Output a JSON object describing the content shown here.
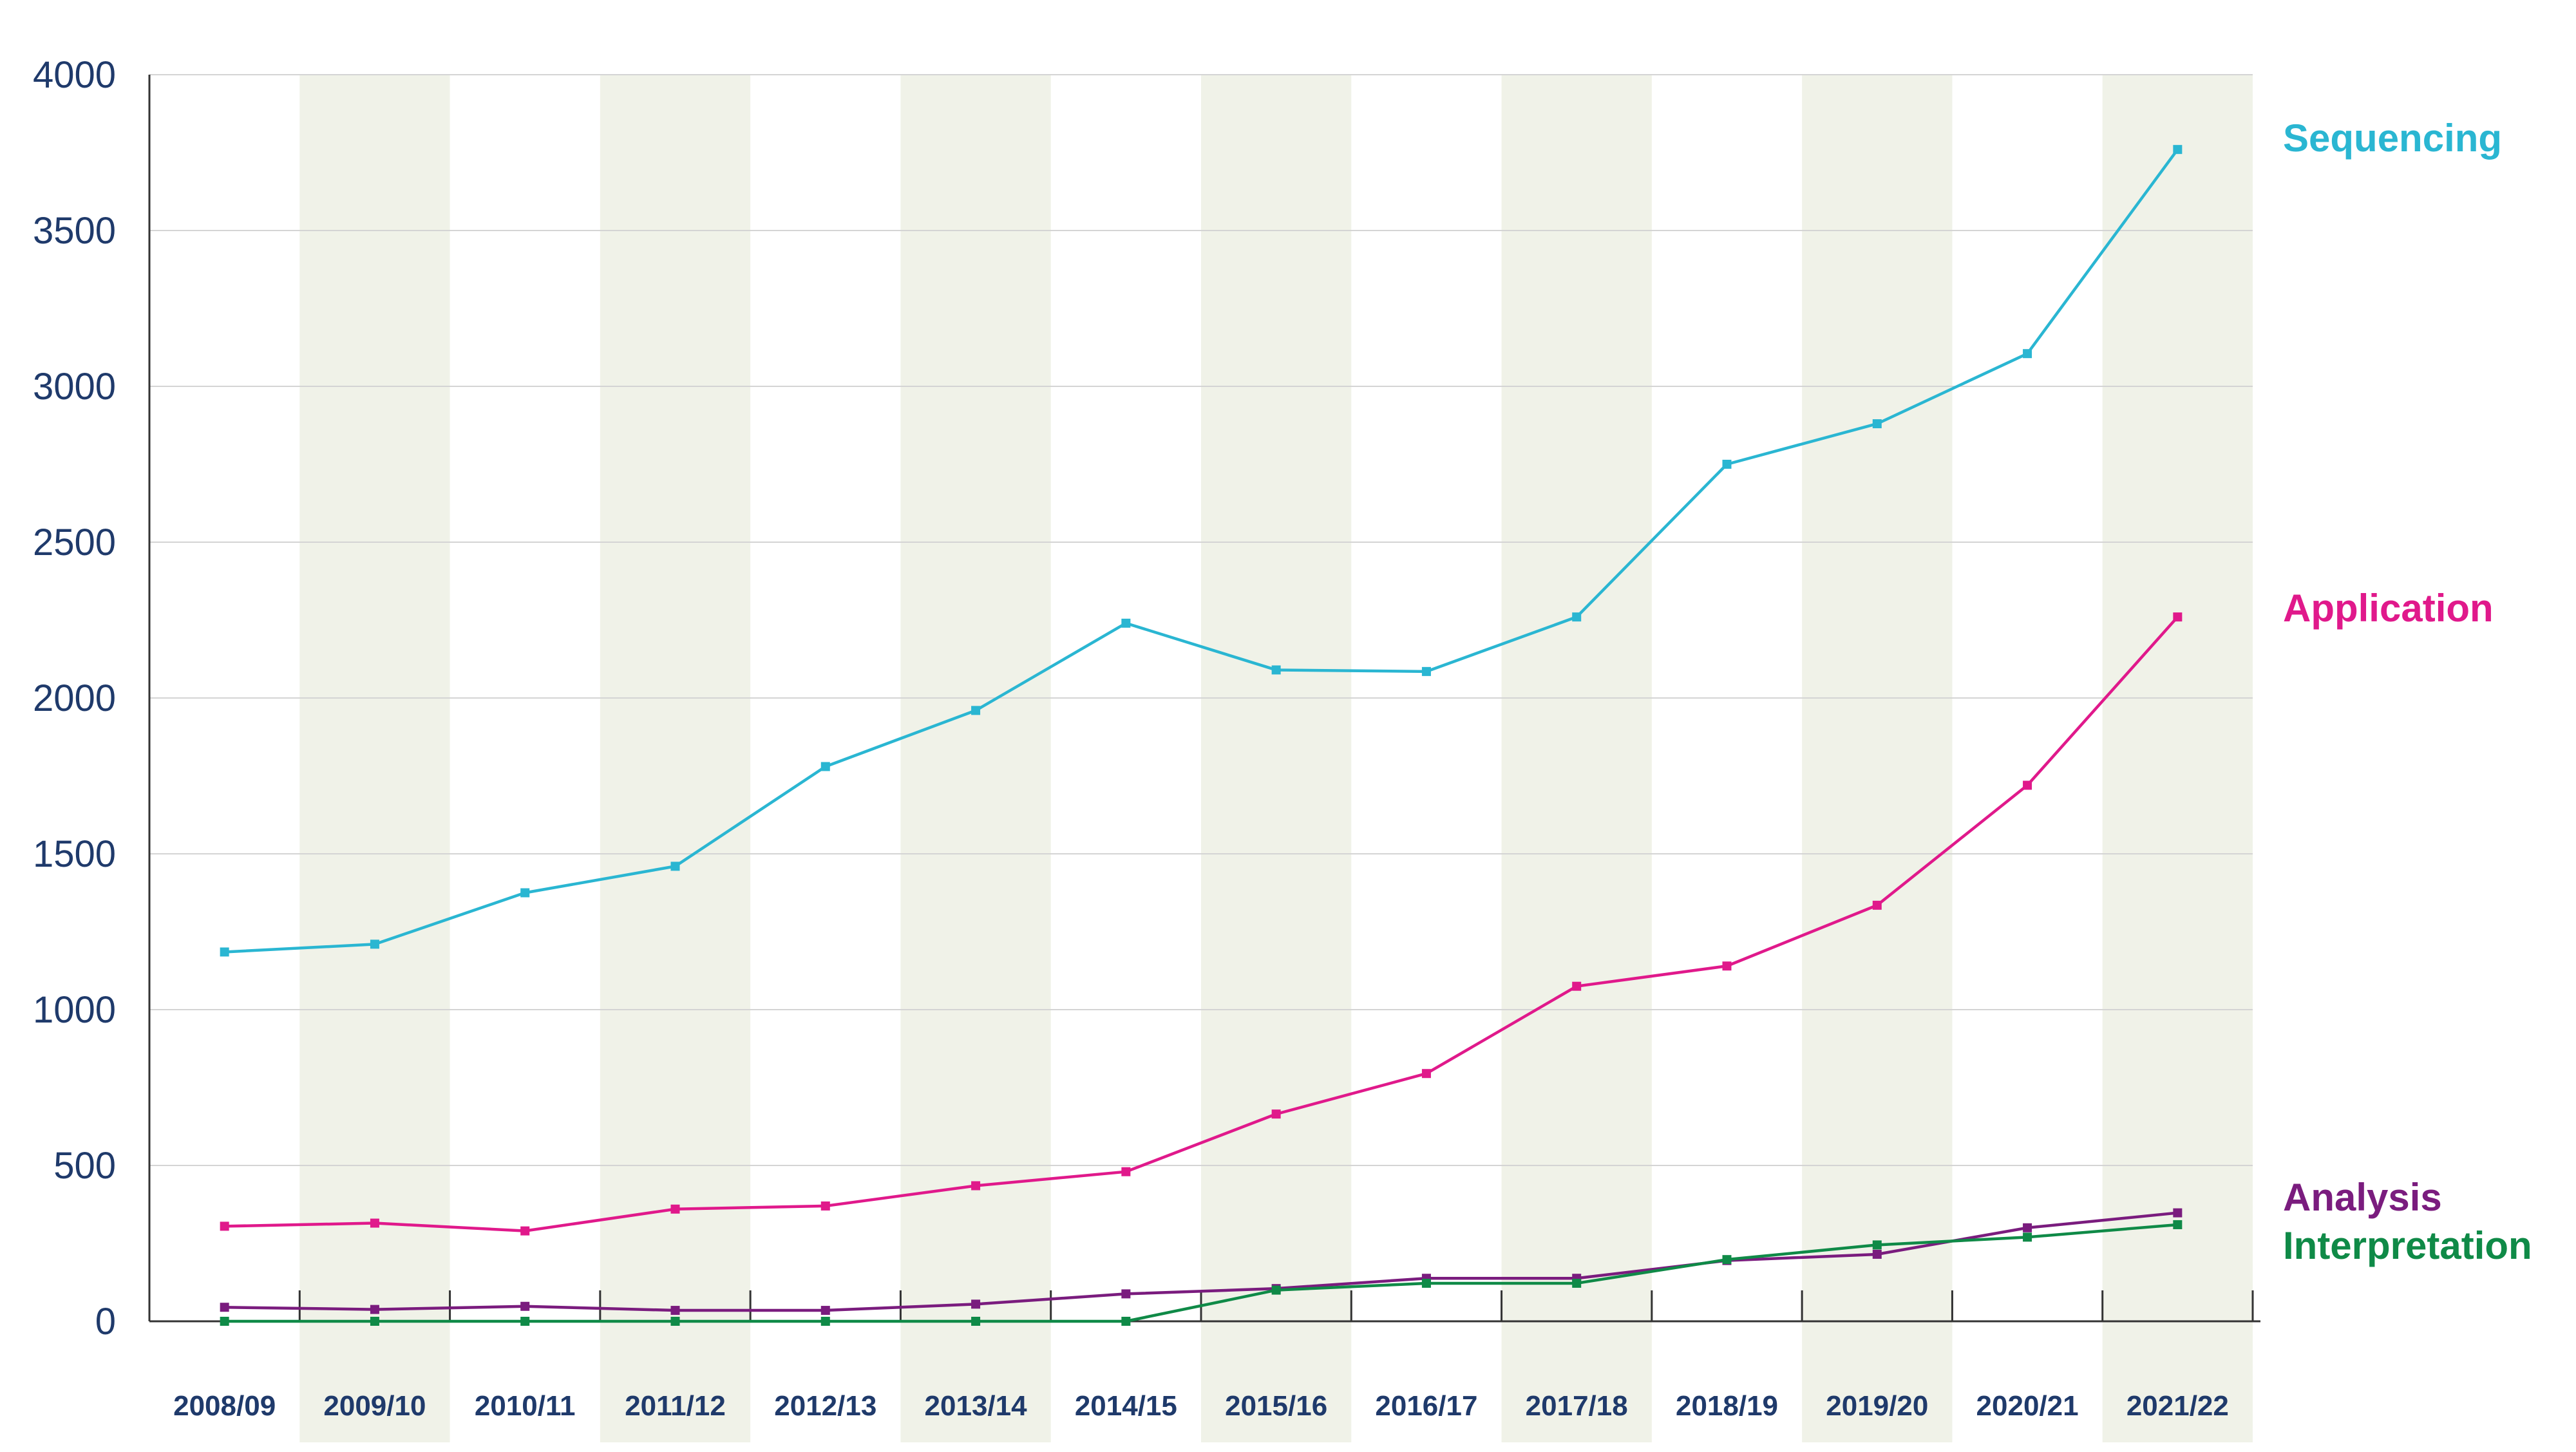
{
  "chart_data": {
    "type": "line",
    "title": "",
    "xlabel": "",
    "ylabel": "",
    "ylim": [
      0,
      4000
    ],
    "yticks": [
      0,
      500,
      1000,
      1500,
      2000,
      2500,
      3000,
      3500,
      4000
    ],
    "grid": "horizontal",
    "alternating_column_shading": true,
    "legend": "direct labels at right end of each line",
    "categories": [
      "2008/09",
      "2009/10",
      "2010/11",
      "2011/12",
      "2012/13",
      "2013/14",
      "2014/15",
      "2015/16",
      "2016/17",
      "2017/18",
      "2018/19",
      "2019/20",
      "2020/21",
      "2021/22"
    ],
    "series": [
      {
        "name": "Sequencing",
        "color": "#2ab6d2",
        "values": [
          1185,
          1210,
          1375,
          1460,
          1780,
          1960,
          2240,
          2090,
          2085,
          2260,
          2750,
          2880,
          3105,
          3760
        ]
      },
      {
        "name": "Application",
        "color": "#e0198b",
        "values": [
          305,
          315,
          290,
          360,
          370,
          435,
          480,
          665,
          795,
          1075,
          1140,
          1335,
          1720,
          2260
        ]
      },
      {
        "name": "Analysis",
        "color": "#7a1c7e",
        "values": [
          45,
          38,
          48,
          35,
          35,
          55,
          88,
          105,
          138,
          138,
          195,
          215,
          300,
          348
        ]
      },
      {
        "name": "Interpretation",
        "color": "#0f8a47",
        "values": [
          0,
          0,
          0,
          0,
          0,
          0,
          0,
          100,
          122,
          122,
          198,
          245,
          270,
          310
        ]
      }
    ],
    "colors": {
      "axis_text": "#1f3a6b",
      "shade": "#f0f2e8",
      "grid": "#d4d4d4",
      "axis": "#333333"
    }
  }
}
